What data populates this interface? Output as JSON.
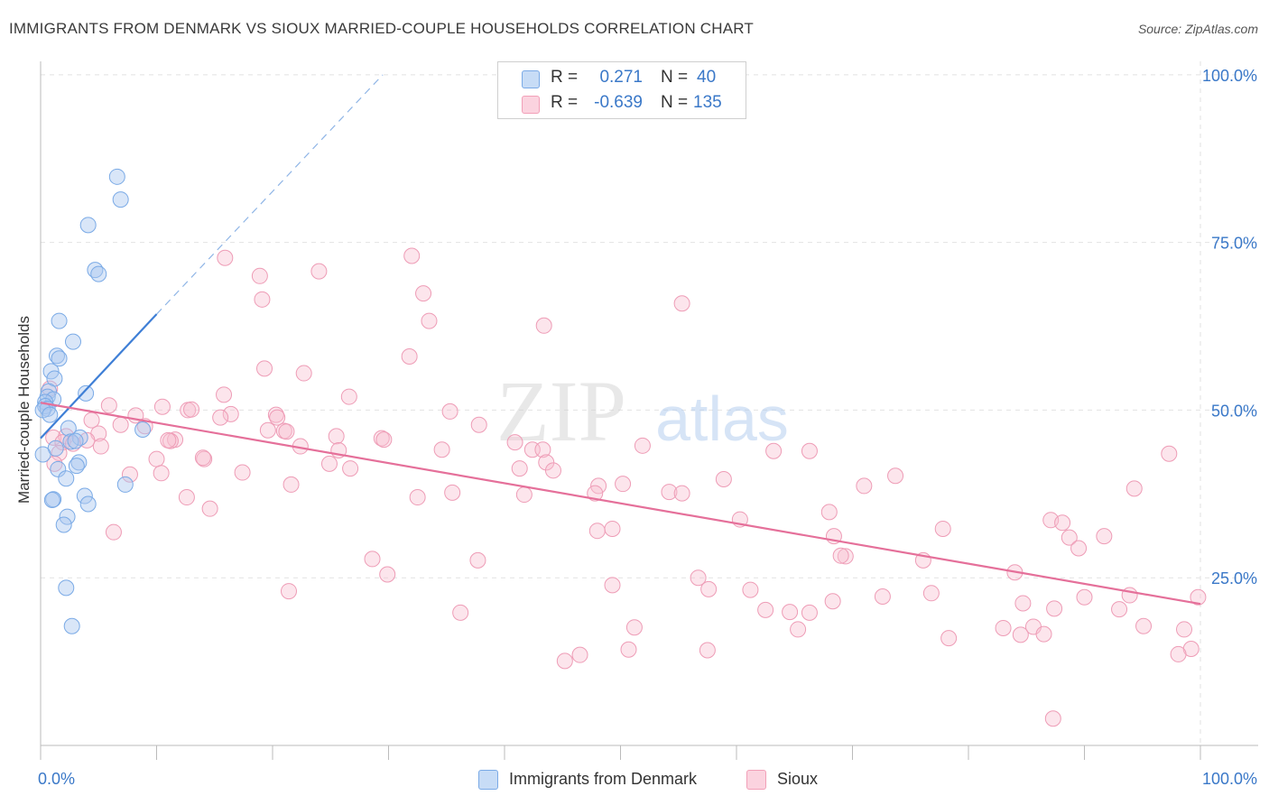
{
  "title": "IMMIGRANTS FROM DENMARK VS SIOUX MARRIED-COUPLE HOUSEHOLDS CORRELATION CHART",
  "source": "Source: ZipAtlas.com",
  "watermark": {
    "zip": "ZIP",
    "atlas": "atlas"
  },
  "legend": {
    "rows": [
      {
        "r_label": "R =",
        "r_value": "0.271",
        "n_label": "N =",
        "n_value": "40",
        "color": "#7aaae6"
      },
      {
        "r_label": "R =",
        "r_value": "-0.639",
        "n_label": "N =",
        "n_value": "135",
        "color": "#f2a0b8"
      }
    ]
  },
  "bottom_legend": [
    {
      "label": "Immigrants from Denmark",
      "color": "#7aaae6"
    },
    {
      "label": "Sioux",
      "color": "#f2a0b8"
    }
  ],
  "chart_data": {
    "type": "scatter",
    "title": "IMMIGRANTS FROM DENMARK VS SIOUX MARRIED-COUPLE HOUSEHOLDS CORRELATION CHART",
    "xlabel": "",
    "ylabel": "Married-couple Households",
    "xlim": [
      0,
      100
    ],
    "ylim": [
      0,
      102
    ],
    "x_tick_labels": [
      "0.0%",
      "100.0%"
    ],
    "y_tick_labels": [
      "25.0%",
      "50.0%",
      "75.0%",
      "100.0%"
    ],
    "y_ticks": [
      25,
      50,
      75,
      100
    ],
    "grid": true,
    "legend_position": "top-center",
    "series": [
      {
        "name": "Immigrants from Denmark",
        "color": "#7aaae6",
        "trend": {
          "x": [
            0,
            10
          ],
          "y": [
            45.8,
            64.3
          ],
          "dashed_to": {
            "x": 29.5,
            "y": 100
          }
        },
        "points": [
          [
            6.6,
            84.8
          ],
          [
            6.9,
            81.4
          ],
          [
            4.1,
            77.6
          ],
          [
            4.7,
            70.9
          ],
          [
            5.0,
            70.3
          ],
          [
            1.6,
            63.3
          ],
          [
            2.8,
            60.2
          ],
          [
            1.4,
            58.1
          ],
          [
            1.6,
            57.7
          ],
          [
            0.9,
            55.8
          ],
          [
            1.2,
            54.7
          ],
          [
            0.7,
            52.8
          ],
          [
            3.9,
            52.5
          ],
          [
            0.6,
            52.0
          ],
          [
            1.1,
            51.6
          ],
          [
            0.4,
            51.2
          ],
          [
            0.4,
            50.6
          ],
          [
            0.6,
            50.2
          ],
          [
            0.2,
            50.0
          ],
          [
            0.8,
            49.3
          ],
          [
            2.4,
            47.3
          ],
          [
            8.8,
            47.1
          ],
          [
            3.4,
            45.9
          ],
          [
            2.6,
            45.3
          ],
          [
            3.0,
            45.4
          ],
          [
            1.3,
            44.3
          ],
          [
            0.2,
            43.4
          ],
          [
            3.3,
            42.2
          ],
          [
            3.1,
            41.7
          ],
          [
            1.5,
            41.2
          ],
          [
            2.2,
            39.8
          ],
          [
            7.3,
            38.9
          ],
          [
            3.8,
            37.2
          ],
          [
            1.1,
            36.7
          ],
          [
            1.0,
            36.6
          ],
          [
            4.1,
            36.0
          ],
          [
            2.3,
            34.1
          ],
          [
            2.0,
            32.9
          ],
          [
            2.2,
            23.5
          ],
          [
            2.7,
            17.8
          ]
        ]
      },
      {
        "name": "Sioux",
        "color": "#f2a0b8",
        "trend": {
          "x": [
            0,
            100
          ],
          "y": [
            51.1,
            21.1
          ]
        },
        "points": [
          [
            15.9,
            72.7
          ],
          [
            32.0,
            73.0
          ],
          [
            24.0,
            70.7
          ],
          [
            18.9,
            70.0
          ],
          [
            19.1,
            66.5
          ],
          [
            33.0,
            67.4
          ],
          [
            55.3,
            65.9
          ],
          [
            33.5,
            63.3
          ],
          [
            43.4,
            62.6
          ],
          [
            31.8,
            58.0
          ],
          [
            19.3,
            56.2
          ],
          [
            22.7,
            55.5
          ],
          [
            0.8,
            53.2
          ],
          [
            15.8,
            52.3
          ],
          [
            26.6,
            52.0
          ],
          [
            5.9,
            50.7
          ],
          [
            10.5,
            50.5
          ],
          [
            12.7,
            50.0
          ],
          [
            13.0,
            50.1
          ],
          [
            35.3,
            49.8
          ],
          [
            8.2,
            49.2
          ],
          [
            16.4,
            49.4
          ],
          [
            20.3,
            49.3
          ],
          [
            15.5,
            48.9
          ],
          [
            20.4,
            48.9
          ],
          [
            4.4,
            48.5
          ],
          [
            6.9,
            47.8
          ],
          [
            9.0,
            47.6
          ],
          [
            19.6,
            47.0
          ],
          [
            21.0,
            46.9
          ],
          [
            21.2,
            46.8
          ],
          [
            5.0,
            46.5
          ],
          [
            1.1,
            45.9
          ],
          [
            2.2,
            46.1
          ],
          [
            25.5,
            46.1
          ],
          [
            29.4,
            45.8
          ],
          [
            29.6,
            45.6
          ],
          [
            37.8,
            47.8
          ],
          [
            11.6,
            45.6
          ],
          [
            11.2,
            45.4
          ],
          [
            11.0,
            45.5
          ],
          [
            1.9,
            45.2
          ],
          [
            4.0,
            45.5
          ],
          [
            5.2,
            44.6
          ],
          [
            2.8,
            45.0
          ],
          [
            22.4,
            44.6
          ],
          [
            40.9,
            45.2
          ],
          [
            51.9,
            44.7
          ],
          [
            42.4,
            44.1
          ],
          [
            43.3,
            44.1
          ],
          [
            34.6,
            44.1
          ],
          [
            63.2,
            43.9
          ],
          [
            66.3,
            43.9
          ],
          [
            25.7,
            44.0
          ],
          [
            10.0,
            42.7
          ],
          [
            14.1,
            42.7
          ],
          [
            97.3,
            43.5
          ],
          [
            1.6,
            43.6
          ],
          [
            14.0,
            42.9
          ],
          [
            1.2,
            42.0
          ],
          [
            24.9,
            42.0
          ],
          [
            43.6,
            42.2
          ],
          [
            26.7,
            41.3
          ],
          [
            41.3,
            41.3
          ],
          [
            44.2,
            41.0
          ],
          [
            17.4,
            40.7
          ],
          [
            7.7,
            40.4
          ],
          [
            10.4,
            40.6
          ],
          [
            73.7,
            40.2
          ],
          [
            71.0,
            38.7
          ],
          [
            48.1,
            38.7
          ],
          [
            58.9,
            39.7
          ],
          [
            50.2,
            39.0
          ],
          [
            21.6,
            38.9
          ],
          [
            35.5,
            37.7
          ],
          [
            54.2,
            37.8
          ],
          [
            55.3,
            37.6
          ],
          [
            41.7,
            37.4
          ],
          [
            47.8,
            37.6
          ],
          [
            12.6,
            37.0
          ],
          [
            32.5,
            37.0
          ],
          [
            14.6,
            35.3
          ],
          [
            94.3,
            38.3
          ],
          [
            68.0,
            34.8
          ],
          [
            60.3,
            33.7
          ],
          [
            87.1,
            33.6
          ],
          [
            88.1,
            33.2
          ],
          [
            49.3,
            32.3
          ],
          [
            48.0,
            32.0
          ],
          [
            77.8,
            32.3
          ],
          [
            6.3,
            31.8
          ],
          [
            68.4,
            31.2
          ],
          [
            88.7,
            31.0
          ],
          [
            91.7,
            31.2
          ],
          [
            89.5,
            29.4
          ],
          [
            28.6,
            27.8
          ],
          [
            37.7,
            27.6
          ],
          [
            76.1,
            27.6
          ],
          [
            69.4,
            28.2
          ],
          [
            69.0,
            28.3
          ],
          [
            84.0,
            25.8
          ],
          [
            29.9,
            25.5
          ],
          [
            56.7,
            25.0
          ],
          [
            49.3,
            23.9
          ],
          [
            61.2,
            23.2
          ],
          [
            21.4,
            23.0
          ],
          [
            57.6,
            23.3
          ],
          [
            76.8,
            22.7
          ],
          [
            90.0,
            22.1
          ],
          [
            72.6,
            22.2
          ],
          [
            93.9,
            22.4
          ],
          [
            84.7,
            21.2
          ],
          [
            68.3,
            21.5
          ],
          [
            99.8,
            22.1
          ],
          [
            62.5,
            20.2
          ],
          [
            87.4,
            20.4
          ],
          [
            93.0,
            20.3
          ],
          [
            64.6,
            19.9
          ],
          [
            66.3,
            19.8
          ],
          [
            36.2,
            19.8
          ],
          [
            51.2,
            17.6
          ],
          [
            65.3,
            17.3
          ],
          [
            83.0,
            17.5
          ],
          [
            85.6,
            17.7
          ],
          [
            95.1,
            17.8
          ],
          [
            98.6,
            17.3
          ],
          [
            78.3,
            16.0
          ],
          [
            84.5,
            16.5
          ],
          [
            86.5,
            16.6
          ],
          [
            50.7,
            14.3
          ],
          [
            57.5,
            14.2
          ],
          [
            99.2,
            14.4
          ],
          [
            98.1,
            13.6
          ],
          [
            46.5,
            13.5
          ],
          [
            45.2,
            12.6
          ],
          [
            87.3,
            4.0
          ]
        ]
      }
    ]
  }
}
